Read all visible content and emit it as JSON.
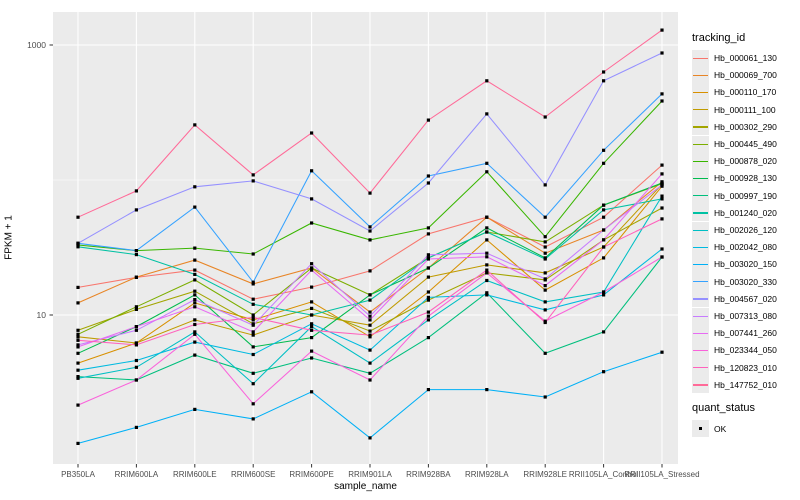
{
  "figure": {
    "background": "#FFFFFF",
    "panel_background": "#EBEBEB",
    "grid_color": "#FFFFFF",
    "tick_color": "#333333",
    "axis_text_color": "#4D4D4D",
    "point_color": "#000000",
    "legend_key_background": "#EBEBEB"
  },
  "axes": {
    "y_label": "FPKM + 1",
    "x_label": "sample_name",
    "y_ticks": [
      {
        "value": 1000,
        "label": "1000"
      },
      {
        "value": 10,
        "label": "10"
      }
    ]
  },
  "legend": {
    "tracking_title": "tracking_id",
    "quant_title": "quant_status",
    "quant_items": [
      {
        "label": "OK"
      }
    ]
  },
  "chart_data": {
    "type": "line",
    "title": "",
    "xlabel": "sample_name",
    "ylabel": "FPKM + 1",
    "y_scale": "log10",
    "ylim": [
      1.05,
      1800
    ],
    "y_major_ticks": [
      10,
      1000
    ],
    "y_minor_gridlines": [
      100
    ],
    "grid": true,
    "legend_position": "right",
    "point_shape": "square",
    "point_color": "#000000",
    "categories": [
      "PB350LA",
      "RRIM600LA",
      "RRIM600LE",
      "RRIM600SE",
      "RRIM600PE",
      "RRIM901LA",
      "RRIM928BA",
      "RRIM928LA",
      "RRIM928LE",
      "RRII105LA_Control",
      "RRII105LA_Stressed"
    ],
    "series": [
      {
        "name": "Hb_000061_130",
        "color": "#F8766D",
        "values": [
          16,
          19,
          21.5,
          13.1,
          16.1,
          21.2,
          39.9,
          53,
          31.9,
          53,
          129
        ]
      },
      {
        "name": "Hb_000069_700",
        "color": "#E88526",
        "values": [
          12.3,
          19.1,
          25.5,
          17,
          22.3,
          10.5,
          22.3,
          53,
          28.7,
          42.6,
          97
        ]
      },
      {
        "name": "Hb_000110_170",
        "color": "#D89000",
        "values": [
          4.4,
          6.2,
          12.3,
          9.2,
          12.5,
          6.9,
          14.8,
          36,
          15.3,
          26.5,
          90
        ]
      },
      {
        "name": "Hb_000111_100",
        "color": "#C09B00",
        "values": [
          6.9,
          6.2,
          9.2,
          7.1,
          10,
          8.4,
          19.1,
          23.5,
          20.5,
          31.9,
          93
        ]
      },
      {
        "name": "Hb_000302_290",
        "color": "#A3A500",
        "values": [
          7.7,
          11,
          15,
          8.6,
          11.2,
          7.6,
          12.9,
          20.5,
          18.2,
          36,
          62
        ]
      },
      {
        "name": "Hb_000445_490",
        "color": "#7CAE00",
        "values": [
          7.2,
          11.5,
          18.2,
          10,
          22.3,
          14.1,
          26.5,
          41.2,
          34.8,
          65.2,
          94
        ]
      },
      {
        "name": "Hb_000878_020",
        "color": "#39B600",
        "values": [
          33,
          30,
          31.3,
          28.3,
          48,
          36,
          44.2,
          115,
          38,
          133,
          385
        ]
      },
      {
        "name": "Hb_000928_130",
        "color": "#00BB4E",
        "values": [
          5.2,
          8.2,
          14.1,
          5.8,
          6.8,
          14.1,
          22.3,
          44.2,
          26.5,
          65.2,
          95
        ]
      },
      {
        "name": "Hb_000997_190",
        "color": "#00BF7D",
        "values": [
          3.5,
          3.3,
          5.05,
          3.7,
          4.8,
          3.7,
          6.8,
          14.6,
          5.2,
          7.5,
          26.9
        ]
      },
      {
        "name": "Hb_001240_020",
        "color": "#00C1A3",
        "values": [
          32,
          28,
          20,
          12,
          10,
          12.9,
          26.5,
          41.2,
          26,
          60,
          72.4
        ]
      },
      {
        "name": "Hb_002026_120",
        "color": "#00BFC4",
        "values": [
          3.4,
          4.1,
          7.5,
          3.1,
          8.2,
          4.4,
          9.2,
          18,
          12.5,
          14.8,
          76
        ]
      },
      {
        "name": "Hb_002042_080",
        "color": "#00BAE0",
        "values": [
          3.9,
          4.6,
          6.3,
          5.1,
          8.6,
          5.5,
          13.5,
          14.1,
          10.9,
          14.1,
          30.8
        ]
      },
      {
        "name": "Hb_003020_150",
        "color": "#00B0F6",
        "values": [
          1.12,
          1.47,
          2.0,
          1.7,
          2.7,
          1.23,
          2.8,
          2.8,
          2.47,
          3.8,
          5.3
        ]
      },
      {
        "name": "Hb_003020_330",
        "color": "#35A2FF",
        "values": [
          34,
          30,
          63,
          17.5,
          117,
          44.9,
          107,
          133,
          53,
          166,
          434
        ]
      },
      {
        "name": "Hb_004567_020",
        "color": "#9590FF",
        "values": [
          34,
          60,
          89,
          98.5,
          72.4,
          41.9,
          95,
          309,
          92,
          543,
          872
        ]
      },
      {
        "name": "Hb_007313_080",
        "color": "#C77CFF",
        "values": [
          6.0,
          7.7,
          13,
          8.4,
          24,
          9.8,
          27.9,
          28.7,
          18.5,
          42.6,
          92
        ]
      },
      {
        "name": "Hb_007441_260",
        "color": "#E76BF3",
        "values": [
          5.8,
          8.2,
          11.5,
          7.5,
          21.5,
          9.2,
          26,
          27,
          16.5,
          36,
          111
        ]
      },
      {
        "name": "Hb_023344_050",
        "color": "#FA62DB",
        "values": [
          2.15,
          3.3,
          7.2,
          2.2,
          5.4,
          3.3,
          9.8,
          20.5,
          9.0,
          14.8,
          26.9
        ]
      },
      {
        "name": "Hb_120823_010",
        "color": "#FF62BC",
        "values": [
          6.5,
          6.0,
          8.5,
          9.6,
          7.7,
          7.1,
          10.5,
          21.5,
          8.8,
          31.9,
          51.5
        ]
      },
      {
        "name": "Hb_147752_010",
        "color": "#FF6A98",
        "values": [
          53,
          83,
          256,
          109,
          223,
          80,
          278,
          543,
          293,
          631,
          1290
        ]
      }
    ]
  }
}
